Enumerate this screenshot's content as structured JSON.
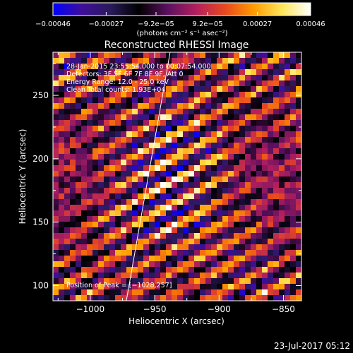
{
  "chart_data": {
    "type": "heatmap",
    "title": "Reconstructed RHESSI Image",
    "xlabel": "Heliocentric X (arcsec)",
    "ylabel": "Heliocentric Y (arcsec)",
    "xlim": [
      -1029,
      -836
    ],
    "ylim": [
      88,
      284
    ],
    "x_ticks": [
      {
        "value": -1000,
        "label": "−1000"
      },
      {
        "value": -950,
        "label": "−950"
      },
      {
        "value": -900,
        "label": "−900"
      },
      {
        "value": -850,
        "label": "−850"
      }
    ],
    "y_ticks": [
      {
        "value": 100,
        "label": "100"
      },
      {
        "value": 150,
        "label": "150"
      },
      {
        "value": 200,
        "label": "200"
      },
      {
        "value": 250,
        "label": "250"
      }
    ],
    "colorbar": {
      "range": [
        -0.00046,
        0.00046
      ],
      "ticks": [
        {
          "value": -0.00046,
          "label": "−0.00046"
        },
        {
          "value": -0.00027,
          "label": "−0.00027"
        },
        {
          "value": -9.2e-05,
          "label": "−9.2e−05"
        },
        {
          "value": 9.2e-05,
          "label": "9.2e−05"
        },
        {
          "value": 0.00027,
          "label": "0.00027"
        },
        {
          "value": 0.00046,
          "label": "0.00046"
        }
      ],
      "unit_label": "(photons cm⁻² s⁻¹ asec⁻²)",
      "colors": [
        "#0000ff",
        "#3f0e9a",
        "#2a1a5c",
        "#000000",
        "#5a1060",
        "#b21f5e",
        "#e8481f",
        "#ff9a00",
        "#ffe65a",
        "#ffffff"
      ]
    },
    "annotations": [
      "28-Jan-2015 23:55:54.000 to 00:07:54.000",
      "Detectors: 3F 5F 6F 7F 8F 9F, Att 0",
      "Energy Range: 12.0 - 25.0 keV",
      "Clean    Total counts: 1.93E+04"
    ],
    "peak_label": "Position of Peak = [−1028,257]",
    "limb_line": [
      [
        -972,
        88
      ],
      [
        -938,
        284
      ]
    ],
    "stripe_pattern": {
      "direction": "diagonal, descending to the right",
      "peak_value": 0.00046
    }
  },
  "footer": {
    "timestamp": "23-Jul-2017 05:12"
  }
}
